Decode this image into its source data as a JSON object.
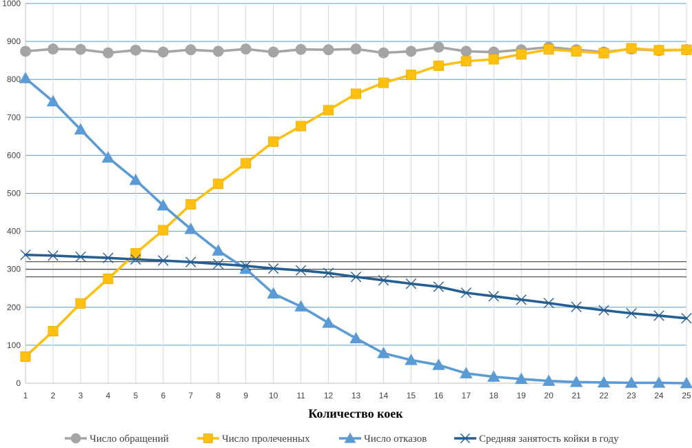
{
  "chart_data": {
    "type": "line",
    "title": "",
    "xlabel": "Количество коек",
    "ylabel": "",
    "x": [
      1,
      2,
      3,
      4,
      5,
      6,
      7,
      8,
      9,
      10,
      11,
      12,
      13,
      14,
      15,
      16,
      17,
      18,
      19,
      20,
      21,
      22,
      23,
      24,
      25
    ],
    "ylim": [
      0,
      1000
    ],
    "yticks": [
      0,
      100,
      200,
      300,
      400,
      500,
      600,
      700,
      800,
      900,
      1000
    ],
    "grid": true,
    "legend_position": "bottom",
    "reference_lines": [
      280,
      300,
      320
    ],
    "series": [
      {
        "name": "Число обращений",
        "color": "#a5a5a5",
        "marker": "circle",
        "values": [
          874,
          880,
          879,
          870,
          877,
          872,
          878,
          874,
          880,
          872,
          879,
          878,
          880,
          870,
          874,
          885,
          874,
          872,
          878,
          885,
          878,
          872,
          880,
          876,
          878
        ]
      },
      {
        "name": "Число пролеченных",
        "color": "#fdc00f",
        "marker": "square",
        "values": [
          70,
          137,
          210,
          275,
          342,
          403,
          471,
          525,
          579,
          636,
          677,
          719,
          762,
          791,
          812,
          836,
          848,
          853,
          866,
          879,
          874,
          869,
          882,
          877,
          878
        ]
      },
      {
        "name": "Число отказов",
        "color": "#5b9bd5",
        "marker": "triangle",
        "values": [
          803,
          742,
          668,
          594,
          535,
          468,
          406,
          349,
          301,
          236,
          202,
          159,
          118,
          79,
          61,
          48,
          26,
          17,
          11,
          6,
          3,
          2,
          1,
          1,
          0
        ]
      },
      {
        "name": "Средняя занятость койки в году",
        "color": "#255e91",
        "marker": "x",
        "values": [
          338,
          336,
          333,
          330,
          326,
          323,
          319,
          314,
          309,
          302,
          297,
          290,
          280,
          271,
          262,
          254,
          238,
          229,
          220,
          211,
          201,
          192,
          184,
          178,
          171
        ]
      }
    ]
  }
}
